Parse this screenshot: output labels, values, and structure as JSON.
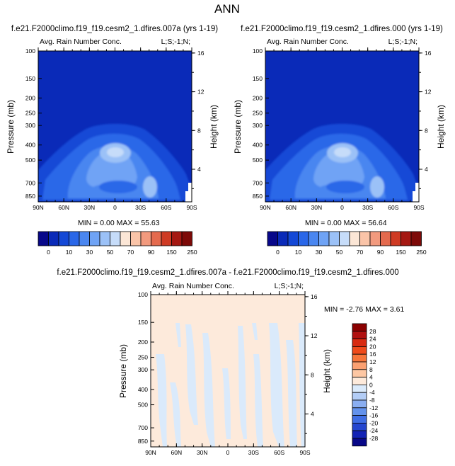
{
  "page_title": "ANN",
  "chart_data": [
    {
      "type": "heatmap",
      "title": "f.e21.F2000climo.f19_f19.cesm2_1.dfires.007a (yrs 1-19)",
      "subtitle_left": "Avg. Rain Number Conc.",
      "subtitle_right": "L;S;-1;N;",
      "ylabel": "Pressure (mb)",
      "ylabel_right": "Height (km)",
      "x_ticks": [
        "90N",
        "60N",
        "30N",
        "0",
        "30S",
        "60S",
        "90S"
      ],
      "y_ticks": [
        "100",
        "150",
        "200",
        "250",
        "300",
        "400",
        "500",
        "700",
        "850"
      ],
      "y_ticks_right": [
        "16",
        "12",
        "8",
        "4"
      ],
      "min_label": "MIN =",
      "min_value": "0.00",
      "max_label": "MAX =",
      "max_value": "55.63",
      "colorbar_labels": [
        "0",
        "10",
        "30",
        "50",
        "70",
        "90",
        "150",
        "250"
      ]
    },
    {
      "type": "heatmap",
      "title": "f.e21.F2000climo.f19_f19.cesm2_1.dfires.000 (yrs 1-19)",
      "subtitle_left": "Avg. Rain Number Conc.",
      "subtitle_right": "L;S;-1;N;",
      "ylabel": "Pressure (mb)",
      "ylabel_right": "Height (km)",
      "x_ticks": [
        "90N",
        "60N",
        "30N",
        "0",
        "30S",
        "60S",
        "90S"
      ],
      "y_ticks": [
        "100",
        "150",
        "200",
        "250",
        "300",
        "400",
        "500",
        "700",
        "850"
      ],
      "y_ticks_right": [
        "16",
        "12",
        "8",
        "4"
      ],
      "min_label": "MIN =",
      "min_value": "0.00",
      "max_label": "MAX =",
      "max_value": "56.64",
      "colorbar_labels": [
        "0",
        "10",
        "30",
        "50",
        "70",
        "90",
        "150",
        "250"
      ]
    },
    {
      "type": "heatmap",
      "title": "f.e21.F2000climo.f19_f19.cesm2_1.dfires.007a - f.e21.F2000climo.f19_f19.cesm2_1.dfires.000",
      "subtitle_left": "Avg. Rain Number Conc.",
      "subtitle_right": "L;S;-1;N;",
      "ylabel": "Pressure (mb)",
      "ylabel_right": "Height (km)",
      "x_ticks": [
        "90N",
        "60N",
        "30N",
        "0",
        "30S",
        "60S",
        "90S"
      ],
      "y_ticks": [
        "100",
        "150",
        "200",
        "250",
        "300",
        "400",
        "500",
        "700",
        "850"
      ],
      "y_ticks_right": [
        "16",
        "12",
        "8",
        "4"
      ],
      "min_label": "MIN =",
      "min_value": "-2.76",
      "max_label": "MAX =",
      "max_value": "3.61",
      "colorbar_labels": [
        "28",
        "24",
        "20",
        "16",
        "12",
        "8",
        "4",
        "0",
        "-4",
        "-8",
        "-12",
        "-16",
        "-20",
        "-24",
        "-28"
      ]
    }
  ],
  "colors": {
    "abs_scale": [
      "#08088a",
      "#0a2ab8",
      "#1448d6",
      "#2a67e8",
      "#4a86f0",
      "#6fa3f5",
      "#9bc1f7",
      "#c6dcf9",
      "#fbe6d6",
      "#fac4a8",
      "#f29a7e",
      "#e46a4e",
      "#cf3b24",
      "#a51812",
      "#7d0a08"
    ],
    "diff_scale": [
      "#8b0000",
      "#b01010",
      "#d82a10",
      "#ef4a1a",
      "#f7753a",
      "#fba071",
      "#fdc7a3",
      "#fdeadb",
      "#daeafb",
      "#b3cdf6",
      "#8aaef1",
      "#6392ec",
      "#3f6ee5",
      "#2446cf",
      "#1222b5",
      "#080888"
    ],
    "axis": "#000000",
    "background": "#ffffff"
  }
}
